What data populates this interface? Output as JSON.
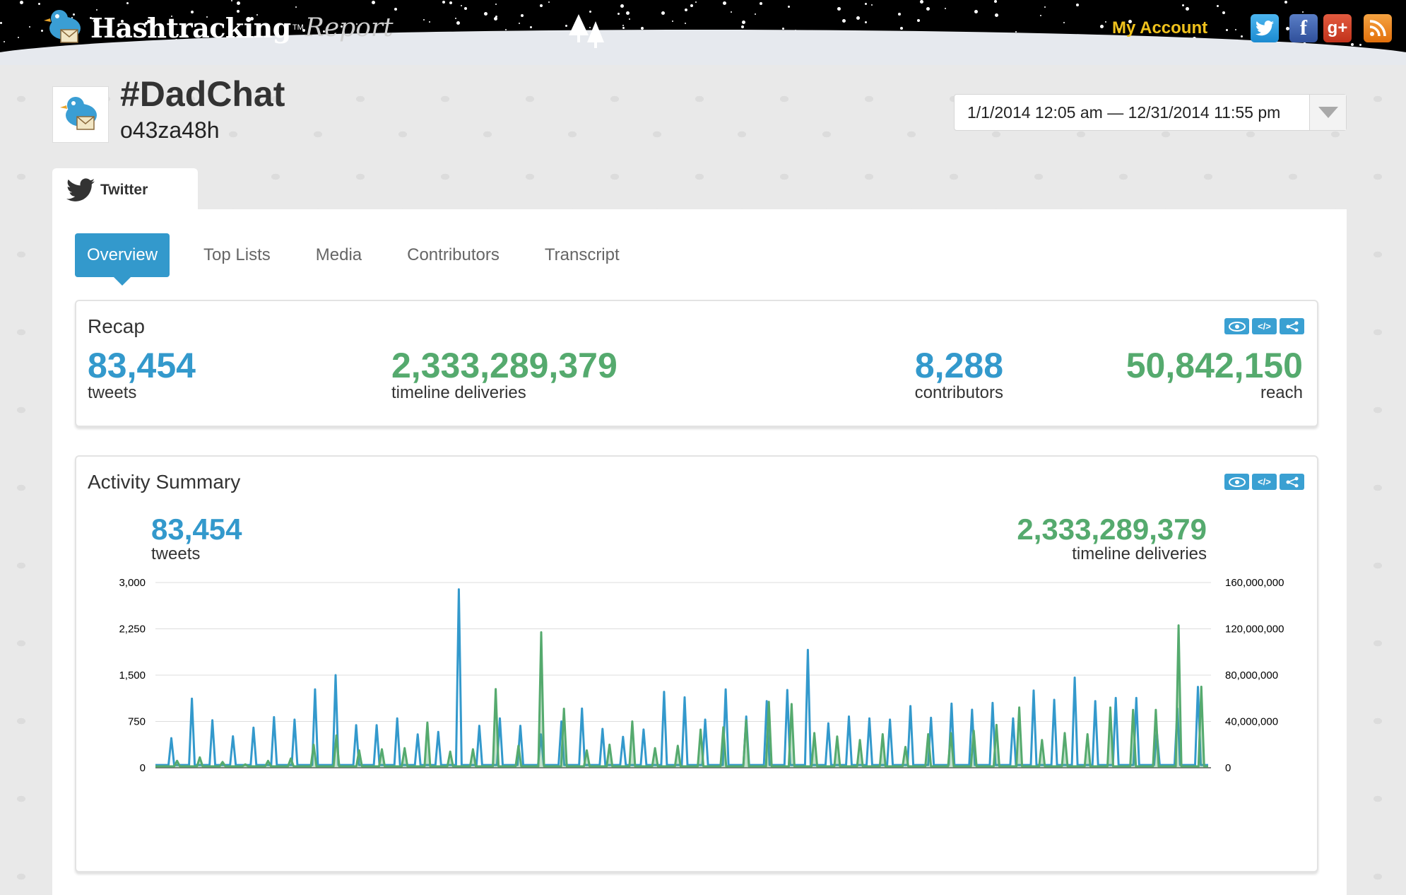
{
  "header": {
    "logo_main": "Hashtracking",
    "logo_tm": "TM",
    "logo_sub": "Report",
    "my_account": "My Account",
    "social": [
      {
        "icon": "twitter-icon",
        "glyph": "t"
      },
      {
        "icon": "facebook-icon",
        "glyph": "f"
      },
      {
        "icon": "google-plus-icon",
        "glyph": "g+"
      },
      {
        "icon": "rss-icon",
        "glyph": "rss"
      }
    ]
  },
  "report": {
    "hashtag": "#DadChat",
    "id": "o43za48h",
    "date_range": "1/1/2014 12:05 am — 12/31/2014 11:55 pm"
  },
  "service_tab": {
    "label": "Twitter"
  },
  "tabs": [
    "Overview",
    "Top Lists",
    "Media",
    "Contributors",
    "Transcript"
  ],
  "active_tab": "Overview",
  "recap": {
    "title": "Recap",
    "tweets_value": "83,454",
    "tweets_label": "tweets",
    "deliveries_value": "2,333,289,379",
    "deliveries_label": "timeline deliveries",
    "contributors_value": "8,288",
    "contributors_label": "contributors",
    "reach_value": "50,842,150",
    "reach_label": "reach"
  },
  "activity": {
    "title": "Activity Summary",
    "tweets_value": "83,454",
    "tweets_label": "tweets",
    "deliveries_value": "2,333,289,379",
    "deliveries_label": "timeline deliveries"
  },
  "colors": {
    "blue": "#3399cc",
    "green": "#55aa6e",
    "accent_yellow": "#f0c21c"
  },
  "chart_data": {
    "type": "line",
    "x_period": "2014",
    "left_axis": {
      "ticks": [
        "0",
        "750",
        "1,500",
        "2,250",
        "3,000"
      ],
      "ylim": [
        0,
        3000
      ]
    },
    "right_axis": {
      "ticks": [
        "0",
        "40,000,000",
        "80,000,000",
        "120,000,000",
        "160,000,000"
      ],
      "ylim": [
        0,
        160000000
      ]
    },
    "series": [
      {
        "axis": "left",
        "color": "#3399cc",
        "peaks": [
          480,
          1120,
          770,
          510,
          650,
          820,
          780,
          1270,
          1500,
          690,
          690,
          800,
          540,
          580,
          2890,
          680,
          800,
          680,
          540,
          750,
          960,
          630,
          500,
          620,
          1230,
          1140,
          780,
          1270,
          830,
          1080,
          1260,
          1910,
          720,
          830,
          800,
          780,
          1000,
          810,
          1040,
          940,
          1050,
          800,
          1250,
          1100,
          1460,
          1080,
          1130,
          1130,
          570,
          960,
          1310
        ],
        "baseline": 45
      },
      {
        "axis": "right",
        "color": "#55aa6e",
        "peaks": [
          6000000,
          9000000,
          5000000,
          3000000,
          6000000,
          8000000,
          20000000,
          28000000,
          15000000,
          16000000,
          17000000,
          39000000,
          14000000,
          16000000,
          68000000,
          19000000,
          117000000,
          51000000,
          15000000,
          20000000,
          40000000,
          17000000,
          19000000,
          33000000,
          35000000,
          41000000,
          57000000,
          55000000,
          30000000,
          27000000,
          24000000,
          29000000,
          18000000,
          29000000,
          30000000,
          32000000,
          37000000,
          52000000,
          24000000,
          30000000,
          29000000,
          52000000,
          50000000,
          50000000,
          123000000,
          70000000
        ],
        "baseline": 1200000
      }
    ]
  }
}
